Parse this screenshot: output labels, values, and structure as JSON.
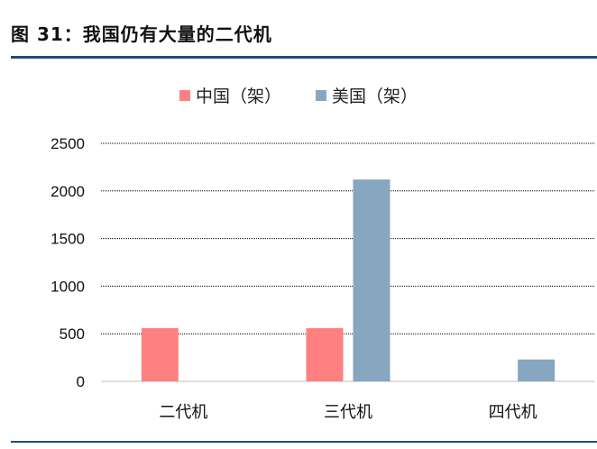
{
  "header": {
    "title": "图 31：我国仍有大量的二代机"
  },
  "colors": {
    "rule": "#1f4e79",
    "china": "#ff8080",
    "usa": "#87a6bf"
  },
  "chart_data": {
    "type": "bar",
    "categories": [
      "二代机",
      "三代机",
      "四代机"
    ],
    "series": [
      {
        "name": "中国（架）",
        "values": [
          560,
          560,
          null
        ]
      },
      {
        "name": "美国（架）",
        "values": [
          null,
          2120,
          230
        ]
      }
    ],
    "ylim": [
      0,
      2500
    ],
    "yticks": [
      0,
      500,
      1000,
      1500,
      2000,
      2500
    ],
    "grid": true,
    "legend_position": "top-center"
  }
}
